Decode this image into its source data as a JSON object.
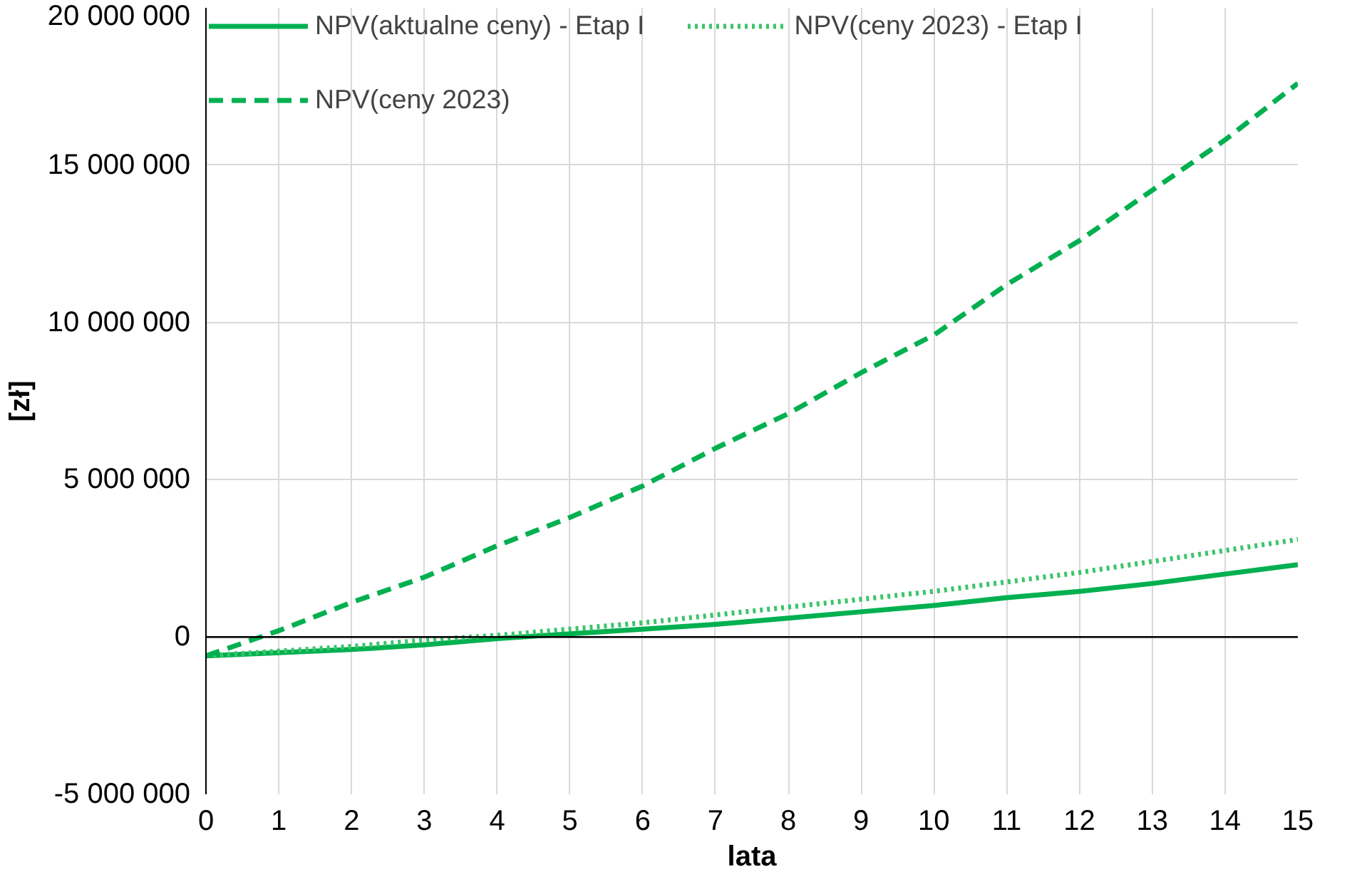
{
  "chart_data": {
    "type": "line",
    "xlabel": "lata",
    "ylabel": "[zł]",
    "x": [
      0,
      1,
      2,
      3,
      4,
      5,
      6,
      7,
      8,
      9,
      10,
      11,
      12,
      13,
      14,
      15
    ],
    "series": [
      {
        "name": "NPV(aktualne ceny) - Etap I",
        "color": "#00b050",
        "line_style": "solid",
        "values": [
          -600000,
          -500000,
          -400000,
          -250000,
          -50000,
          100000,
          250000,
          400000,
          600000,
          800000,
          1000000,
          1250000,
          1450000,
          1700000,
          2000000,
          2300000
        ]
      },
      {
        "name": "NPV(ceny 2023) - Etap I",
        "color": "#3cc46a",
        "line_style": "dotted",
        "values": [
          -600000,
          -450000,
          -300000,
          -100000,
          50000,
          250000,
          450000,
          700000,
          950000,
          1200000,
          1450000,
          1750000,
          2050000,
          2400000,
          2750000,
          3100000
        ]
      },
      {
        "name": "NPV(ceny 2023)",
        "color": "#00b050",
        "line_style": "dashed",
        "values": [
          -600000,
          200000,
          1100000,
          1900000,
          2900000,
          3800000,
          4800000,
          6000000,
          7100000,
          8400000,
          9600000,
          11200000,
          12600000,
          14200000,
          15800000,
          17600000
        ]
      }
    ],
    "xlim": [
      0,
      15
    ],
    "xticks": [
      0,
      1,
      2,
      3,
      4,
      5,
      6,
      7,
      8,
      9,
      10,
      11,
      12,
      13,
      14,
      15
    ],
    "ylim": [
      -5000000,
      20000000
    ],
    "yticks": [
      {
        "value": -5000000,
        "label": "-5 000 000"
      },
      {
        "value": 0,
        "label": "0"
      },
      {
        "value": 5000000,
        "label": "5 000 000"
      },
      {
        "value": 10000000,
        "label": "10 000 000"
      },
      {
        "value": 15000000,
        "label": "15 000 000"
      },
      {
        "value": 20000000,
        "label": "20 000 000"
      }
    ],
    "ref_lines": [
      {
        "axis": "y",
        "value": 0,
        "color": "#000000"
      }
    ],
    "grid": true,
    "legend": "top",
    "marker": "none"
  }
}
